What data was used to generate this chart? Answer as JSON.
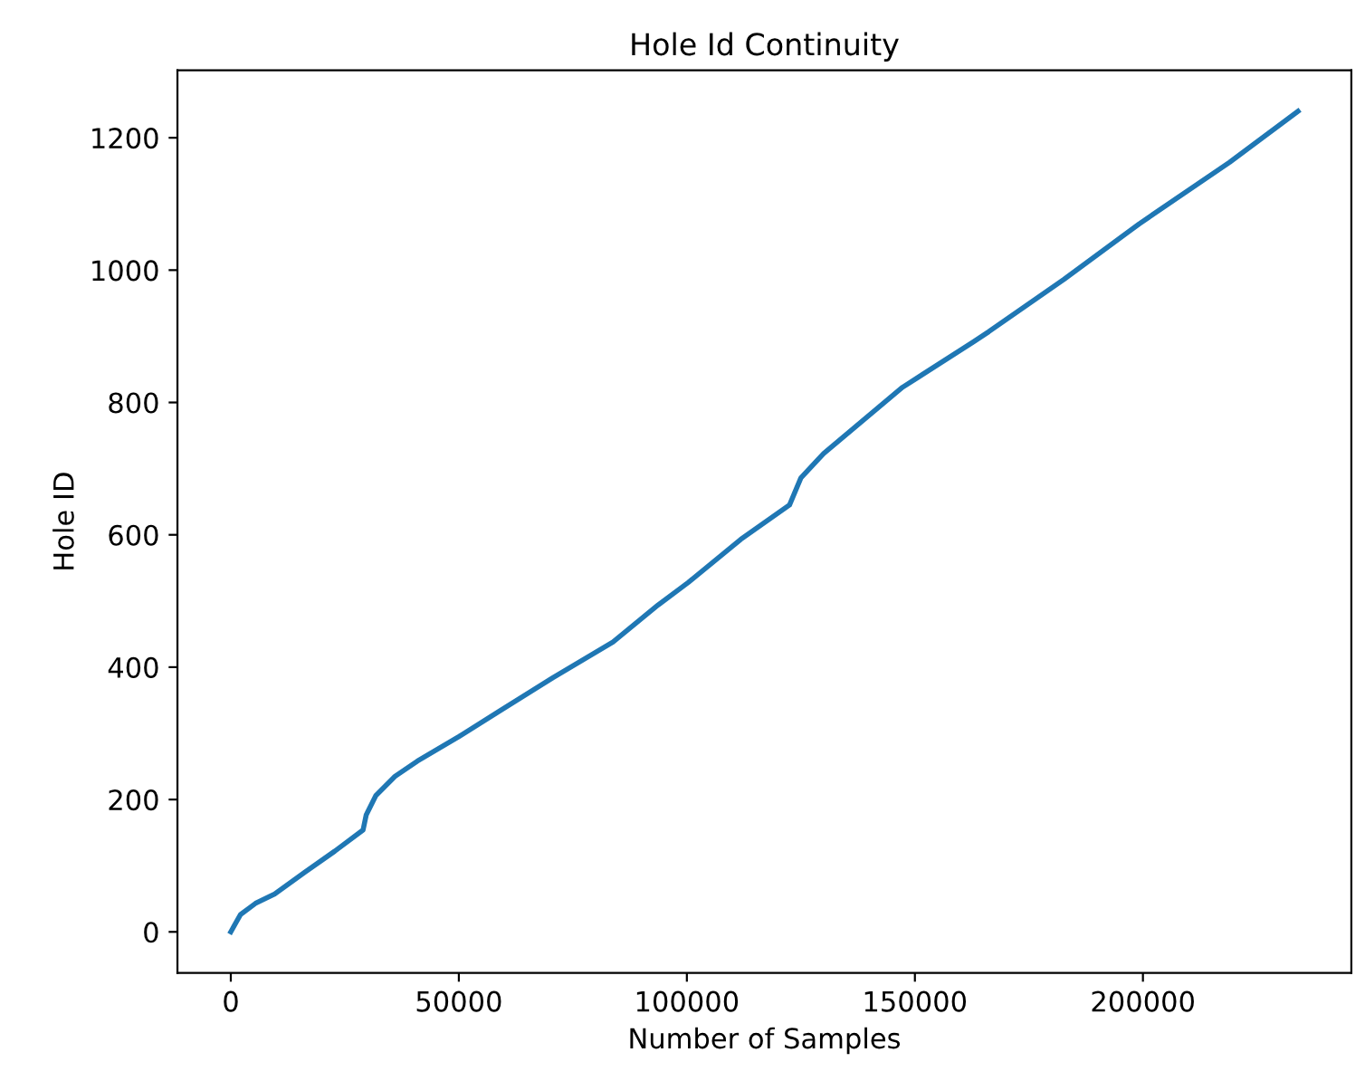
{
  "chart_data": {
    "type": "line",
    "title": "Hole Id Continuity",
    "xlabel": "Number of Samples",
    "ylabel": "Hole ID",
    "x": [
      0,
      2100,
      5400,
      9600,
      16200,
      22800,
      29000,
      29700,
      31800,
      36000,
      40900,
      50000,
      59000,
      70600,
      83800,
      93700,
      100300,
      111800,
      122500,
      125000,
      130000,
      147300,
      162900,
      166200,
      182700,
      199200,
      219000,
      234000
    ],
    "series": [
      {
        "color": "#1f77b4",
        "values": [
          0,
          26,
          43,
          57,
          90,
          122,
          154,
          177,
          206,
          235,
          258,
          295,
          334,
          384,
          438,
          494,
          528,
          593,
          645,
          686,
          723,
          823,
          892,
          907,
          986,
          1070,
          1163,
          1240
        ]
      }
    ],
    "xlim": [
      -11700,
      245700
    ],
    "ylim": [
      -62,
      1302
    ],
    "xticks": [
      0,
      50000,
      100000,
      150000,
      200000
    ],
    "yticks": [
      0,
      200,
      400,
      600,
      800,
      1000,
      1200
    ],
    "grid": false,
    "legend": false,
    "marker": "none",
    "line_style": "solid"
  }
}
